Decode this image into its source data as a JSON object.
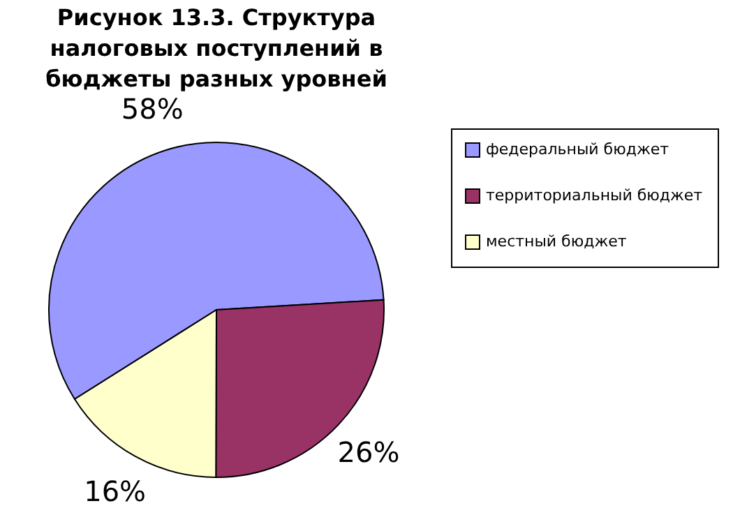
{
  "chart_data": {
    "type": "pie",
    "title": "Рисунок 13.3. Структура налоговых поступлений в бюджеты разных уровней",
    "categories": [
      "федеральный бюджет",
      "территориальный бюджет",
      "местный бюджет"
    ],
    "values": [
      58,
      26,
      16
    ],
    "colors": [
      "#9999ff",
      "#993366",
      "#ffffcc"
    ],
    "value_labels": [
      "58%",
      "26%",
      "16%"
    ],
    "legend": "right"
  }
}
